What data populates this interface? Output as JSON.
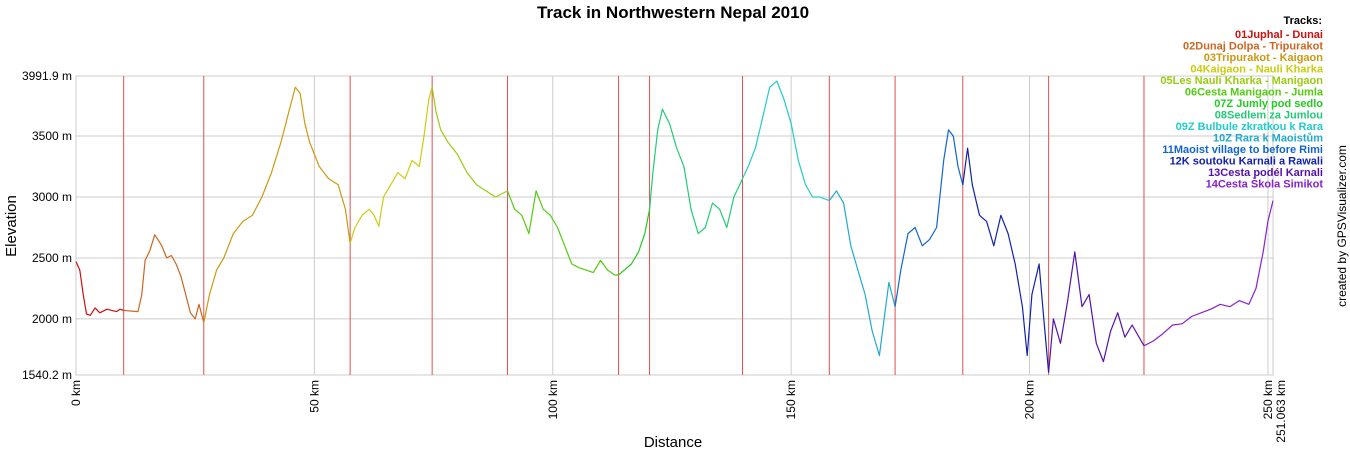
{
  "chart_data": {
    "type": "line",
    "title": "Track in Northwestern Nepal 2010",
    "xlabel": "Distance",
    "ylabel": "Elevation",
    "credit": "created by GPSVisualizer.com",
    "xlim": [
      0,
      251.063
    ],
    "ylim": [
      1540.2,
      3991.9
    ],
    "x_ticks": [
      {
        "value": 0,
        "label": "0 km"
      },
      {
        "value": 50,
        "label": "50 km"
      },
      {
        "value": 100,
        "label": "100 km"
      },
      {
        "value": 150,
        "label": "150 km"
      },
      {
        "value": 200,
        "label": "200 km"
      },
      {
        "value": 250,
        "label": "250 km"
      },
      {
        "value": 251.063,
        "label": "251.063 km"
      }
    ],
    "y_ticks": [
      {
        "value": 1540.2,
        "label": "1540.2 m"
      },
      {
        "value": 2000,
        "label": "2000 m"
      },
      {
        "value": 2500,
        "label": "2500 m"
      },
      {
        "value": 3000,
        "label": "3000 m"
      },
      {
        "value": 3500,
        "label": "3500 m"
      },
      {
        "value": 3991.9,
        "label": "3991.9 m"
      }
    ],
    "grid": true,
    "legend_position": "top-right",
    "legend_title": "Tracks:",
    "segment_boundaries": [
      10.0,
      26.8,
      57.5,
      74.7,
      90.5,
      113.8,
      120.3,
      139.8,
      158.0,
      171.8,
      186.0,
      204.0,
      224.0
    ],
    "series": [
      {
        "name": "01Juphal - Dunai",
        "color": "#cc1111",
        "x": [
          0,
          0.8,
          1.5,
          2.2,
          3.0,
          4.0,
          5.0,
          6.5,
          7.5,
          8.5,
          9.2,
          10.0
        ],
        "y": [
          2470,
          2400,
          2200,
          2040,
          2030,
          2090,
          2050,
          2080,
          2070,
          2060,
          2080,
          2070
        ]
      },
      {
        "name": "02Dunaj Dolpa - Tripurakot",
        "color": "#cc6622",
        "x": [
          10.0,
          11.5,
          13.0,
          13.8,
          14.5,
          15.5,
          16.5,
          17.2,
          18.0,
          19.0,
          20.0,
          21.0,
          22.0,
          23.0,
          24.0,
          25.0,
          25.8,
          26.8
        ],
        "y": [
          2070,
          2065,
          2060,
          2200,
          2480,
          2560,
          2690,
          2650,
          2600,
          2500,
          2520,
          2450,
          2350,
          2200,
          2050,
          2000,
          2120,
          1970
        ]
      },
      {
        "name": "03Tripurakot - Kaigaon",
        "color": "#cc9911",
        "x": [
          26.8,
          28.0,
          29.5,
          31.0,
          33.0,
          35.0,
          37.0,
          39.0,
          41.0,
          43.0,
          45.0,
          46.0,
          47.0,
          48.0,
          49.0,
          51.0,
          53.0,
          55.0,
          56.5,
          57.5
        ],
        "y": [
          1970,
          2200,
          2400,
          2500,
          2700,
          2800,
          2850,
          3000,
          3200,
          3450,
          3750,
          3900,
          3850,
          3600,
          3450,
          3250,
          3150,
          3100,
          2900,
          2620
        ]
      },
      {
        "name": "04Kaigaon - Nauli Kharka",
        "color": "#cccc11",
        "x": [
          57.5,
          58.5,
          60.0,
          61.5,
          62.5,
          63.5,
          64.5,
          66.0,
          67.5,
          69.0,
          70.5,
          72.0,
          73.0,
          74.0,
          74.7
        ],
        "y": [
          2620,
          2750,
          2850,
          2900,
          2850,
          2760,
          3000,
          3100,
          3200,
          3150,
          3300,
          3250,
          3500,
          3800,
          3900
        ]
      },
      {
        "name": "05Les Nauli Kharka - Manigaon",
        "color": "#99cc11",
        "x": [
          74.7,
          75.5,
          76.5,
          78.0,
          80.0,
          82.0,
          84.0,
          86.0,
          88.0,
          90.5
        ],
        "y": [
          3900,
          3700,
          3550,
          3450,
          3350,
          3200,
          3100,
          3050,
          3000,
          3050
        ]
      },
      {
        "name": "06Cesta Manigaon - Jumla",
        "color": "#55cc11",
        "x": [
          90.5,
          92.0,
          93.5,
          95.0,
          96.5,
          98.0,
          99.5,
          101.0,
          102.5,
          104.0,
          105.5,
          107.0,
          108.5,
          110.0,
          111.5,
          113.0,
          113.8
        ],
        "y": [
          3050,
          2900,
          2850,
          2700,
          3050,
          2900,
          2850,
          2750,
          2600,
          2450,
          2420,
          2400,
          2380,
          2480,
          2400,
          2360,
          2360
        ]
      },
      {
        "name": "07Z Jumly pod sedlo",
        "color": "#22cc22",
        "x": [
          113.8,
          115.0,
          116.5,
          118.0,
          119.3,
          120.3
        ],
        "y": [
          2360,
          2400,
          2450,
          2550,
          2700,
          2900
        ]
      },
      {
        "name": "08Sedlem za Jumlou",
        "color": "#22cc77",
        "x": [
          120.3,
          121.0,
          122.0,
          123.0,
          124.5,
          126.0,
          127.5,
          129.0,
          130.5,
          132.0,
          133.5,
          135.0,
          136.5,
          138.0,
          139.8
        ],
        "y": [
          2900,
          3200,
          3550,
          3720,
          3600,
          3400,
          3250,
          2900,
          2700,
          2750,
          2950,
          2900,
          2750,
          3000,
          3150
        ]
      },
      {
        "name": "09Z Bulbule zkratkou k Rara",
        "color": "#22cccc",
        "x": [
          139.8,
          141.0,
          142.5,
          144.0,
          145.5,
          147.0,
          148.5,
          150.0,
          151.5,
          153.0,
          154.5,
          156.0,
          158.0
        ],
        "y": [
          3150,
          3250,
          3400,
          3650,
          3900,
          3950,
          3800,
          3600,
          3300,
          3100,
          3000,
          3000,
          2970
        ]
      },
      {
        "name": "10Z Rara k Maoistům",
        "color": "#22aacc",
        "x": [
          158.0,
          159.5,
          161.0,
          162.5,
          164.0,
          165.5,
          167.0,
          168.5,
          169.5,
          170.5,
          171.8
        ],
        "y": [
          2970,
          3050,
          2950,
          2600,
          2400,
          2200,
          1900,
          1700,
          2000,
          2300,
          2100
        ]
      },
      {
        "name": "11Maoist village to before Rimi",
        "color": "#1166cc",
        "x": [
          171.8,
          173.0,
          174.5,
          176.0,
          177.5,
          179.0,
          180.5,
          182.0,
          183.0,
          184.0,
          185.0,
          186.0
        ],
        "y": [
          2100,
          2400,
          2700,
          2750,
          2600,
          2650,
          2750,
          3300,
          3550,
          3500,
          3250,
          3100
        ]
      },
      {
        "name": "12K soutoku Karnali a Rawali",
        "color": "#1122aa",
        "x": [
          186.0,
          187.0,
          188.0,
          189.5,
          191.0,
          192.5,
          194.0,
          195.5,
          197.0,
          198.5,
          199.5,
          200.5,
          202.0,
          203.0,
          204.0
        ],
        "y": [
          3100,
          3400,
          3100,
          2850,
          2800,
          2600,
          2850,
          2700,
          2450,
          2100,
          1700,
          2200,
          2450,
          2000,
          1560
        ]
      },
      {
        "name": "13Cesta podél Karnali",
        "color": "#5511aa",
        "x": [
          204.0,
          205.0,
          206.5,
          208.0,
          209.5,
          211.0,
          212.5,
          214.0,
          215.5,
          217.0,
          218.5,
          220.0,
          221.5,
          224.0
        ],
        "y": [
          1560,
          2000,
          1800,
          2150,
          2550,
          2100,
          2200,
          1800,
          1650,
          1900,
          2050,
          1850,
          1950,
          1780
        ]
      },
      {
        "name": "14Cesta Škola Simikot",
        "color": "#8822cc",
        "x": [
          224.0,
          226.0,
          228.0,
          230.0,
          232.0,
          234.0,
          236.0,
          238.0,
          240.0,
          242.0,
          244.0,
          246.0,
          247.5,
          249.0,
          250.0,
          251.063
        ],
        "y": [
          1780,
          1820,
          1880,
          1950,
          1960,
          2020,
          2050,
          2080,
          2120,
          2100,
          2150,
          2120,
          2250,
          2550,
          2800,
          2970
        ]
      }
    ]
  }
}
